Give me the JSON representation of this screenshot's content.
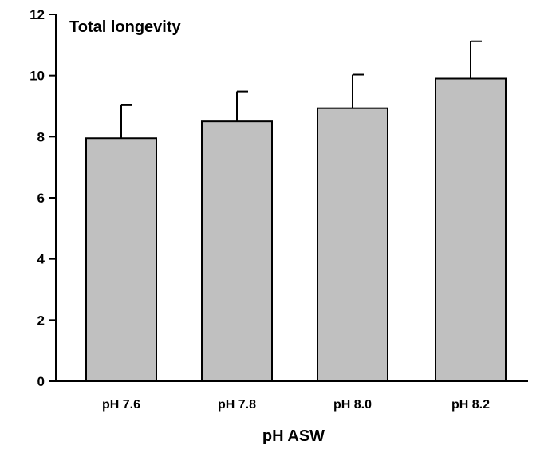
{
  "chart_data": {
    "type": "bar",
    "title": "Total longevity",
    "xlabel": "pH ASW",
    "ylabel": "",
    "categories": [
      "pH 7.6",
      "pH 7.8",
      "pH 8.0",
      "pH 8.2"
    ],
    "values": [
      7.95,
      8.5,
      8.93,
      9.9
    ],
    "errors": [
      1.08,
      0.98,
      1.1,
      1.22
    ],
    "ylim": [
      0,
      12
    ],
    "yticks": [
      0,
      2,
      4,
      6,
      8,
      10,
      12
    ],
    "grid": false,
    "bar_color": "#c0c0c0",
    "edge_color": "#000000"
  }
}
